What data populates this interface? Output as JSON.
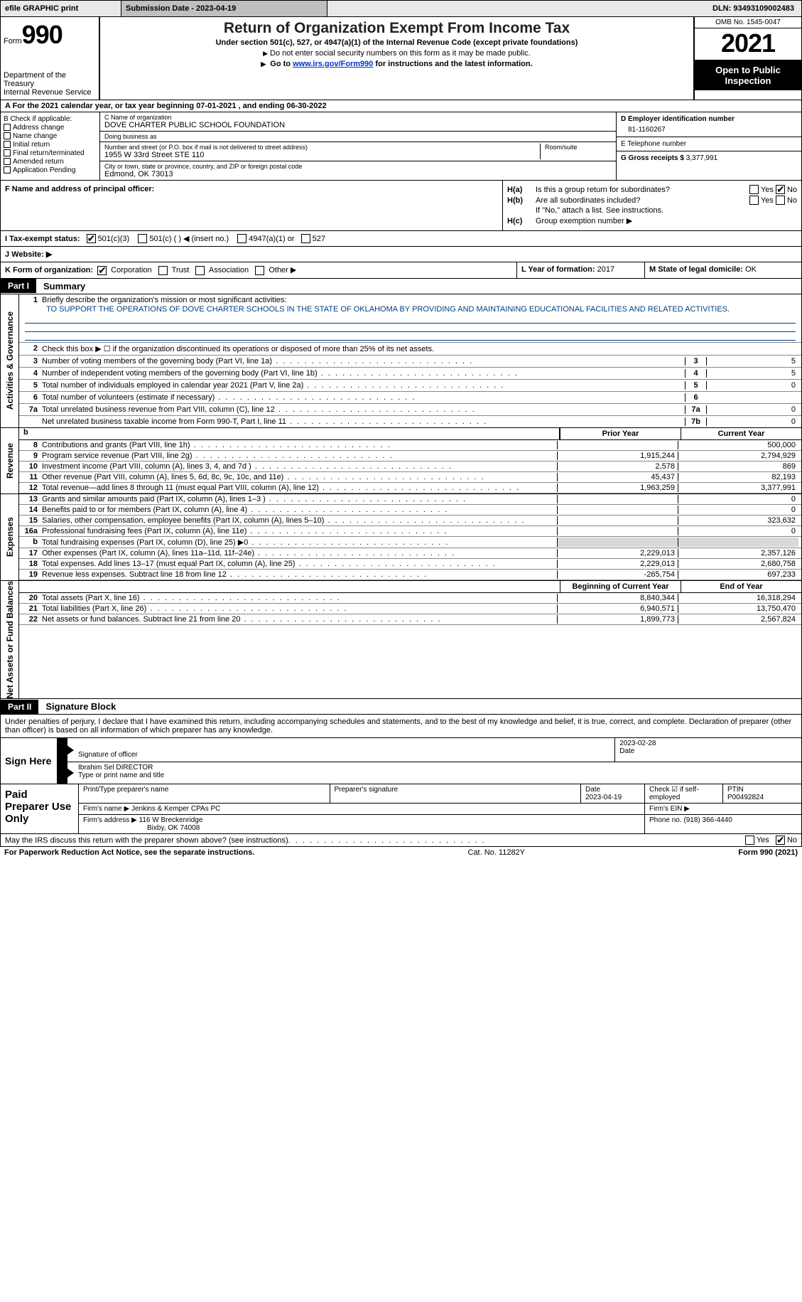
{
  "topbar": {
    "efile": "efile GRAPHIC print",
    "submission": "Submission Date - 2023-04-19",
    "dln": "DLN: 93493109002483"
  },
  "header": {
    "form_word": "Form",
    "form_num": "990",
    "dept": "Department of the Treasury",
    "irs": "Internal Revenue Service",
    "title": "Return of Organization Exempt From Income Tax",
    "sub1": "Under section 501(c), 527, or 4947(a)(1) of the Internal Revenue Code (except private foundations)",
    "sub2": "Do not enter social security numbers on this form as it may be made public.",
    "sub3a": "Go to ",
    "sub3_link": "www.irs.gov/Form990",
    "sub3b": " for instructions and the latest information.",
    "omb": "OMB No. 1545-0047",
    "year": "2021",
    "open": "Open to Public Inspection"
  },
  "tyline": "A For the 2021 calendar year, or tax year beginning 07-01-2021    , and ending 06-30-2022",
  "entity": {
    "b_label": "B Check if applicable:",
    "b_items": [
      "Address change",
      "Name change",
      "Initial return",
      "Final return/terminated",
      "Amended return",
      "Application Pending"
    ],
    "c_name_label": "C Name of organization",
    "c_name": "DOVE CHARTER PUBLIC SCHOOL FOUNDATION",
    "dba_label": "Doing business as",
    "dba": "",
    "street_label": "Number and street (or P.O. box if mail is not delivered to street address)",
    "street": "1955 W 33rd Street STE 110",
    "room_label": "Room/suite",
    "room": "",
    "city_label": "City or town, state or province, country, and ZIP or foreign postal code",
    "city": "Edmond, OK  73013",
    "d_label": "D Employer identification number",
    "d_val": "81-1160267",
    "e_label": "E Telephone number",
    "e_val": "",
    "g_label": "G Gross receipts $",
    "g_val": "3,377,991"
  },
  "fh": {
    "f_label": "F  Name and address of principal officer:",
    "ha": "H(a)  Is this a group return for subordinates?",
    "hb": "H(b)  Are all subordinates included?",
    "hb_note": "If \"No,\" attach a list. See instructions.",
    "hc": "H(c)  Group exemption number ▶",
    "yes": "Yes",
    "no": "No"
  },
  "linesIJK": {
    "i_label": "I  Tax-exempt status:",
    "i_501c3": "501(c)(3)",
    "i_501c": "501(c) (  ) ◀ (insert no.)",
    "i_4947": "4947(a)(1) or",
    "i_527": "527",
    "j_label": "J  Website: ▶",
    "j_val": "",
    "k_label": "K Form of organization:",
    "k_corp": "Corporation",
    "k_trust": "Trust",
    "k_assoc": "Association",
    "k_other": "Other ▶",
    "l_label": "L Year of formation:",
    "l_val": "2017",
    "m_label": "M State of legal domicile:",
    "m_val": "OK"
  },
  "part1": {
    "tag": "Part I",
    "title": "Summary",
    "vtab_ag": "Activities & Governance",
    "vtab_rev": "Revenue",
    "vtab_exp": "Expenses",
    "vtab_na": "Net Assets or Fund Balances",
    "line1_label": "Briefly describe the organization's mission or most significant activities:",
    "mission": "TO SUPPORT THE OPERATIONS OF DOVE CHARTER SCHOOLS IN THE STATE OF OKLAHOMA BY PROVIDING AND MAINTAINING EDUCATIONAL FACILITIES AND RELATED ACTIVITIES.",
    "line2": "Check this box ▶ ☐  if the organization discontinued its operations or disposed of more than 25% of its net assets.",
    "rows_ag": [
      {
        "n": "3",
        "d": "Number of voting members of the governing body (Part VI, line 1a)",
        "b": "3",
        "v": "5"
      },
      {
        "n": "4",
        "d": "Number of independent voting members of the governing body (Part VI, line 1b)",
        "b": "4",
        "v": "5"
      },
      {
        "n": "5",
        "d": "Total number of individuals employed in calendar year 2021 (Part V, line 2a)",
        "b": "5",
        "v": "0"
      },
      {
        "n": "6",
        "d": "Total number of volunteers (estimate if necessary)",
        "b": "6",
        "v": ""
      },
      {
        "n": "7a",
        "d": "Total unrelated business revenue from Part VIII, column (C), line 12",
        "b": "7a",
        "v": "0"
      },
      {
        "n": "",
        "d": "Net unrelated business taxable income from Form 990-T, Part I, line 11",
        "b": "7b",
        "v": "0"
      }
    ],
    "col_prior": "Prior Year",
    "col_curr": "Current Year",
    "rows_rev": [
      {
        "n": "8",
        "d": "Contributions and grants (Part VIII, line 1h)",
        "p": "",
        "c": "500,000"
      },
      {
        "n": "9",
        "d": "Program service revenue (Part VIII, line 2g)",
        "p": "1,915,244",
        "c": "2,794,929"
      },
      {
        "n": "10",
        "d": "Investment income (Part VIII, column (A), lines 3, 4, and 7d )",
        "p": "2,578",
        "c": "869"
      },
      {
        "n": "11",
        "d": "Other revenue (Part VIII, column (A), lines 5, 6d, 8c, 9c, 10c, and 11e)",
        "p": "45,437",
        "c": "82,193"
      },
      {
        "n": "12",
        "d": "Total revenue—add lines 8 through 11 (must equal Part VIII, column (A), line 12)",
        "p": "1,963,259",
        "c": "3,377,991"
      }
    ],
    "rows_exp": [
      {
        "n": "13",
        "d": "Grants and similar amounts paid (Part IX, column (A), lines 1–3 )",
        "p": "",
        "c": "0"
      },
      {
        "n": "14",
        "d": "Benefits paid to or for members (Part IX, column (A), line 4)",
        "p": "",
        "c": "0"
      },
      {
        "n": "15",
        "d": "Salaries, other compensation, employee benefits (Part IX, column (A), lines 5–10)",
        "p": "",
        "c": "323,632"
      },
      {
        "n": "16a",
        "d": "Professional fundraising fees (Part IX, column (A), line 11e)",
        "p": "",
        "c": "0"
      },
      {
        "n": "b",
        "d": "Total fundraising expenses (Part IX, column (D), line 25) ▶0",
        "p": "GREY",
        "c": "GREY"
      },
      {
        "n": "17",
        "d": "Other expenses (Part IX, column (A), lines 11a–11d, 11f–24e)",
        "p": "2,229,013",
        "c": "2,357,126"
      },
      {
        "n": "18",
        "d": "Total expenses. Add lines 13–17 (must equal Part IX, column (A), line 25)",
        "p": "2,229,013",
        "c": "2,680,758"
      },
      {
        "n": "19",
        "d": "Revenue less expenses. Subtract line 18 from line 12",
        "p": "-265,754",
        "c": "697,233"
      }
    ],
    "col_beg": "Beginning of Current Year",
    "col_end": "End of Year",
    "rows_na": [
      {
        "n": "20",
        "d": "Total assets (Part X, line 16)",
        "p": "8,840,344",
        "c": "16,318,294"
      },
      {
        "n": "21",
        "d": "Total liabilities (Part X, line 26)",
        "p": "6,940,571",
        "c": "13,750,470"
      },
      {
        "n": "22",
        "d": "Net assets or fund balances. Subtract line 21 from line 20",
        "p": "1,899,773",
        "c": "2,567,824"
      }
    ]
  },
  "part2": {
    "tag": "Part II",
    "title": "Signature Block",
    "decl": "Under penalties of perjury, I declare that I have examined this return, including accompanying schedules and statements, and to the best of my knowledge and belief, it is true, correct, and complete. Declaration of preparer (other than officer) is based on all information of which preparer has any knowledge.",
    "sign_here": "Sign Here",
    "sig_officer": "Signature of officer",
    "sig_date": "2023-02-28",
    "date_lab": "Date",
    "name_title": "Ibrahim Sel  DIRECTOR",
    "name_lab": "Type or print name and title",
    "paid": "Paid Preparer Use Only",
    "pp_name_lab": "Print/Type preparer's name",
    "pp_sig_lab": "Preparer's signature",
    "pp_date_lab": "Date",
    "pp_date": "2023-04-19",
    "pp_check_lab": "Check ☑ if self-employed",
    "pp_ptin_lab": "PTIN",
    "pp_ptin": "P00492824",
    "firm_name_lab": "Firm's name    ▶",
    "firm_name": "Jenkins & Kemper CPAs PC",
    "firm_ein_lab": "Firm's EIN ▶",
    "firm_addr_lab": "Firm's address ▶",
    "firm_addr1": "116 W Breckenridge",
    "firm_addr2": "Bixby, OK  74008",
    "firm_phone_lab": "Phone no.",
    "firm_phone": "(918) 366-4440",
    "discuss": "May the IRS discuss this return with the preparer shown above? (see instructions)",
    "pra": "For Paperwork Reduction Act Notice, see the separate instructions.",
    "cat": "Cat. No. 11282Y",
    "formfoot": "Form 990 (2021)"
  }
}
